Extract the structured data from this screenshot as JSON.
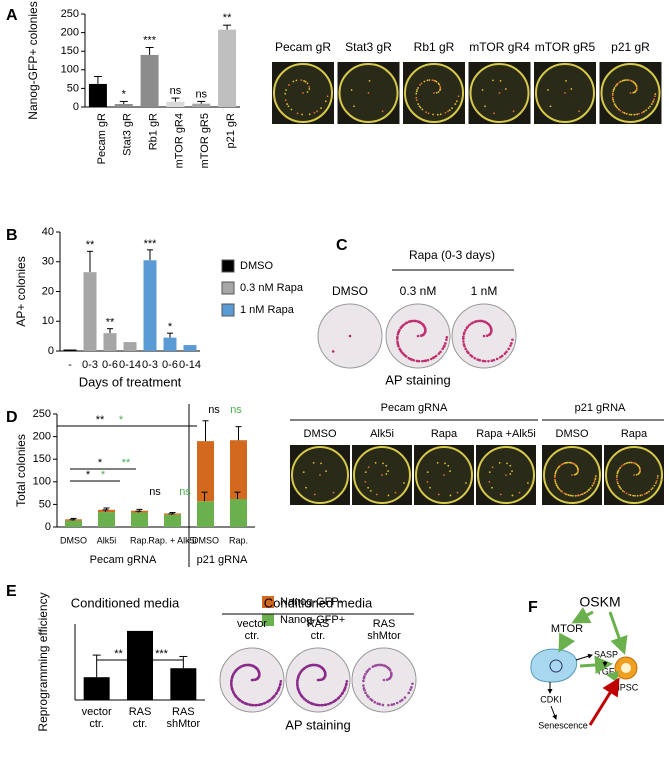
{
  "panels": [
    "A",
    "B",
    "C",
    "D",
    "E",
    "F"
  ],
  "chart_data": [
    {
      "type": "bar",
      "y_label": "Nanog-GFP+ colonies",
      "categories": [
        "Pecam gR",
        "Stat3 gR",
        "Rb1 gR",
        "mTOR gR4",
        "mTOR gR5",
        "p21 gR"
      ],
      "values": [
        62,
        8,
        140,
        14,
        9,
        208
      ],
      "errors": [
        20,
        7,
        20,
        10,
        6,
        12
      ],
      "colors": [
        "#000000",
        "#8c8c8c",
        "#8c8c8c",
        "#d9d9d9",
        "#a6a6a6",
        "#bfbfbf"
      ],
      "annotations": [
        null,
        "*",
        "***",
        "ns",
        "ns",
        "**"
      ],
      "ylim": [
        0,
        250
      ],
      "yticks": [
        0,
        50,
        100,
        150,
        200,
        250
      ]
    },
    {
      "type": "grouped_bar",
      "y_label": "AP+ colonies",
      "x_label": "Days of treatment",
      "categories": [
        "-",
        "0-3",
        "0-6",
        "0-14",
        "0-3",
        "0-6",
        "0-14"
      ],
      "series": [
        {
          "name": "DMSO",
          "color": "#000000",
          "values": [
            0.5,
            null,
            null,
            null,
            null,
            null,
            null
          ],
          "errors": [
            null,
            null,
            null,
            null,
            null,
            null,
            null
          ]
        },
        {
          "name": "0.3 nM Rapa",
          "color": "#a6a6a6",
          "values": [
            null,
            26.5,
            6,
            3,
            null,
            null,
            null
          ],
          "errors": [
            null,
            7,
            1.5,
            null,
            null,
            null,
            null
          ]
        },
        {
          "name": "1 nM Rapa",
          "color": "#5b9bd5",
          "values": [
            null,
            null,
            null,
            null,
            30.5,
            4.5,
            2
          ],
          "errors": [
            null,
            null,
            null,
            null,
            3.5,
            1.5,
            null
          ]
        }
      ],
      "annotations": [
        null,
        "**",
        "**",
        null,
        "***",
        "*",
        null
      ],
      "ylim": [
        0,
        40
      ],
      "yticks": [
        0,
        10,
        20,
        30,
        40
      ]
    },
    {
      "type": "stacked_bar",
      "y_label": "Total colonies",
      "categories": [
        "DMSO",
        "Alk5i",
        "Rap.",
        "Rap. + Alk5i",
        "DMSO",
        "Rap."
      ],
      "groups": [
        "Pecam gRNA",
        "p21 gRNA"
      ],
      "series": [
        {
          "name": "Nanog-GFP+",
          "color": "#6ab04c",
          "values": [
            14,
            33,
            32,
            27,
            57,
            62
          ],
          "errors": [
            2,
            5,
            3,
            2,
            20,
            15
          ]
        },
        {
          "name": "Nanog-GFP-",
          "color": "#d2691e",
          "values": [
            3,
            5,
            4,
            3,
            133,
            130
          ],
          "errors": [
            2,
            4,
            3,
            2,
            45,
            30
          ]
        }
      ],
      "annotations": [
        {
          "text": "**",
          "color": "#000000"
        },
        {
          "text": "*",
          "color": "#4caf50"
        },
        {
          "text": "ns",
          "color": "#000000"
        },
        {
          "text": "ns",
          "color": "#4caf50"
        },
        {
          "text": "*",
          "color": "#000000"
        },
        {
          "text": "*",
          "color": "#000000"
        },
        {
          "text": "*",
          "color": "#4caf50"
        },
        {
          "text": "**",
          "color": "#4caf50"
        },
        {
          "text": "ns",
          "color": "#000000"
        },
        {
          "text": "ns",
          "color": "#4caf50"
        }
      ],
      "ylim": [
        0,
        250
      ],
      "yticks": [
        0,
        50,
        100,
        150,
        200,
        250
      ]
    },
    {
      "type": "bar",
      "title": "Conditioned media",
      "y_label": "Reprogramming efficiency",
      "categories": [
        "vector ctr.",
        "RAS ctr.",
        "RAS shMtor"
      ],
      "values": [
        0.33,
        1.0,
        0.46
      ],
      "errors": [
        0.32,
        null,
        0.17
      ],
      "colors": [
        "#000000",
        "#000000",
        "#000000"
      ],
      "brackets": [
        "**",
        "***"
      ],
      "ylim": [
        0,
        1.1
      ]
    }
  ],
  "images_a": [
    "Pecam gR",
    "Stat3 gR",
    "Rb1 gR",
    "mTOR gR4",
    "mTOR gR5",
    "p21 gR"
  ],
  "images_c": {
    "dmso": "DMSO",
    "rapa": "Rapa (0-3 days)",
    "low": "0.3 nM",
    "high": "1 nM",
    "caption": "AP staining"
  },
  "images_d": {
    "groups": [
      "Pecam gRNA",
      "p21 gRNA"
    ],
    "labels": [
      "DMSO",
      "Alk5i",
      "Rapa",
      "Rapa +Alk5i",
      "DMSO",
      "Rapa"
    ]
  },
  "images_e": {
    "title": "Conditioned media",
    "labels": [
      "vector ctr.",
      "RAS ctr.",
      "RAS shMtor"
    ],
    "caption": "AP staining"
  },
  "diagram_f": {
    "oskm": "OSKM",
    "mtor": "MTOR",
    "sasp": "SASP",
    "tgfb": "TGFβ",
    "cdki": "CDKI",
    "senescence": "Senescence",
    "ipsc": "iPSC"
  }
}
